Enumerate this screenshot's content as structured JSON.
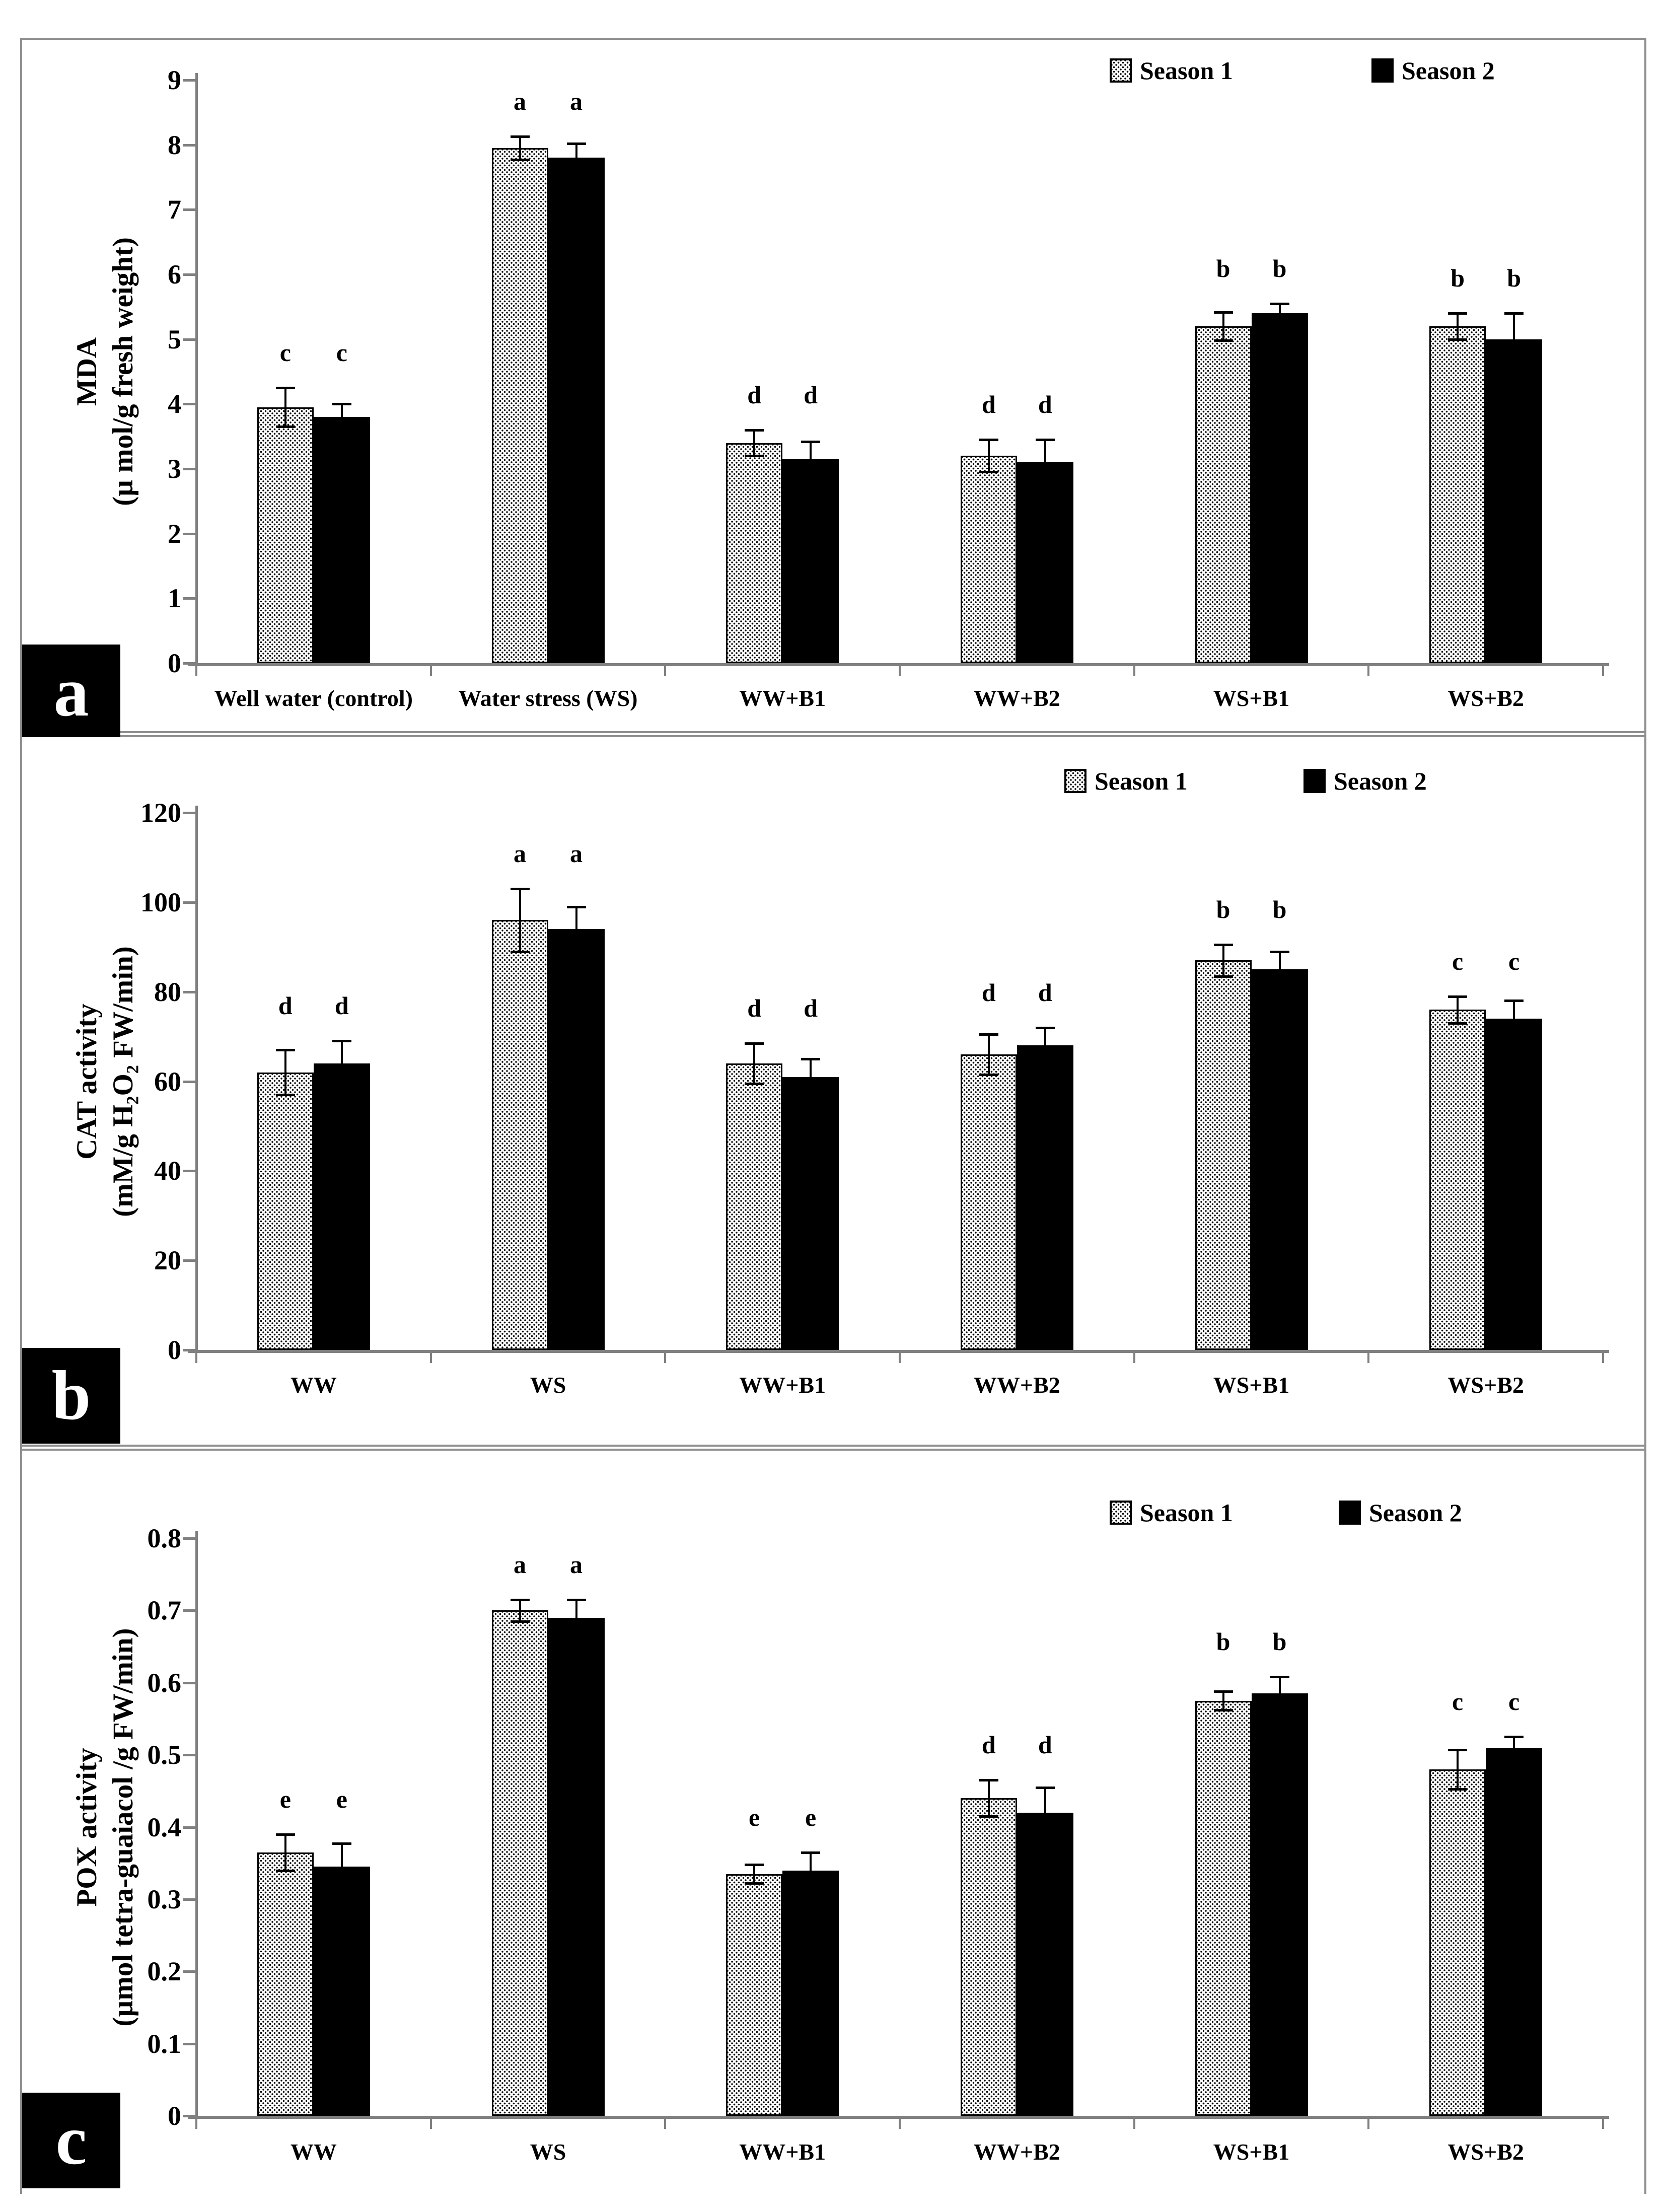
{
  "figure": {
    "legend": {
      "season1": "Season 1",
      "season2": "Season 2"
    },
    "colors": {
      "axis": "#808080",
      "bar_solid": "#000000",
      "bar_dotted_bg": "#ffffff",
      "text": "#000000",
      "panel_label_bg": "#000000",
      "panel_label_text": "#ffffff"
    },
    "panel_labels": [
      "a",
      "b",
      "c"
    ]
  },
  "chart_data": [
    {
      "type": "bar",
      "panel_label": "a",
      "ylabel_line1": "MDA",
      "ylabel_line2": "(µ mol/g fresh weight)",
      "ylim": [
        0,
        9
      ],
      "ytick_step": 1,
      "yticks": [
        0,
        1,
        2,
        3,
        4,
        5,
        6,
        7,
        8,
        9
      ],
      "grid": false,
      "legend_position": "top-right",
      "categories": [
        "Well water (control)",
        "Water stress (WS)",
        "WW+B1",
        "WW+B2",
        "WS+B1",
        "WS+B2"
      ],
      "series": [
        {
          "name": "Season 1",
          "style": "dotted",
          "values": [
            3.95,
            7.95,
            3.4,
            3.2,
            5.2,
            5.2
          ],
          "errors": [
            0.3,
            0.18,
            0.2,
            0.25,
            0.22,
            0.2
          ],
          "letters": [
            "c",
            "a",
            "d",
            "d",
            "b",
            "b"
          ]
        },
        {
          "name": "Season 2",
          "style": "solid",
          "values": [
            3.8,
            7.8,
            3.15,
            3.1,
            5.4,
            5.0
          ],
          "errors": [
            0.2,
            0.22,
            0.27,
            0.35,
            0.15,
            0.4
          ],
          "letters": [
            "c",
            "a",
            "d",
            "d",
            "b",
            "b"
          ]
        }
      ]
    },
    {
      "type": "bar",
      "panel_label": "b",
      "ylabel_line1": "CAT activity",
      "ylabel_line2": "(mM/g H₂O₂ FW/min)",
      "ylim": [
        0,
        120
      ],
      "ytick_step": 20,
      "yticks": [
        0,
        20,
        40,
        60,
        80,
        100,
        120
      ],
      "grid": false,
      "legend_position": "top-right",
      "categories": [
        "WW",
        "WS",
        "WW+B1",
        "WW+B2",
        "WS+B1",
        "WS+B2"
      ],
      "series": [
        {
          "name": "Season 1",
          "style": "dotted",
          "values": [
            62,
            96,
            64,
            66,
            87,
            76
          ],
          "errors": [
            5,
            7,
            4.5,
            4.5,
            3.5,
            3
          ],
          "letters": [
            "d",
            "a",
            "d",
            "d",
            "b",
            "c"
          ]
        },
        {
          "name": "Season 2",
          "style": "solid",
          "values": [
            64,
            94,
            61,
            68,
            85,
            74
          ],
          "errors": [
            5,
            5,
            4,
            4,
            4,
            4
          ],
          "letters": [
            "d",
            "a",
            "d",
            "d",
            "b",
            "c"
          ]
        }
      ]
    },
    {
      "type": "bar",
      "panel_label": "c",
      "ylabel_line1": "POX activity",
      "ylabel_line2": "(µmol tetra-guaiacol /g FW/min)",
      "ylim": [
        0,
        0.8
      ],
      "ytick_step": 0.1,
      "yticks": [
        0,
        0.1,
        0.2,
        0.3,
        0.4,
        0.5,
        0.6,
        0.7,
        0.8
      ],
      "grid": false,
      "legend_position": "top-right",
      "categories": [
        "WW",
        "WS",
        "WW+B1",
        "WW+B2",
        "WS+B1",
        "WS+B2"
      ],
      "series": [
        {
          "name": "Season 1",
          "style": "dotted",
          "values": [
            0.365,
            0.7,
            0.335,
            0.44,
            0.575,
            0.48
          ],
          "errors": [
            0.025,
            0.015,
            0.013,
            0.025,
            0.013,
            0.027
          ],
          "letters": [
            "e",
            "a",
            "e",
            "d",
            "b",
            "c"
          ]
        },
        {
          "name": "Season 2",
          "style": "solid",
          "values": [
            0.345,
            0.69,
            0.34,
            0.42,
            0.585,
            0.51
          ],
          "errors": [
            0.032,
            0.025,
            0.025,
            0.035,
            0.023,
            0.015
          ],
          "letters": [
            "e",
            "a",
            "e",
            "d",
            "b",
            "c"
          ]
        }
      ]
    }
  ]
}
